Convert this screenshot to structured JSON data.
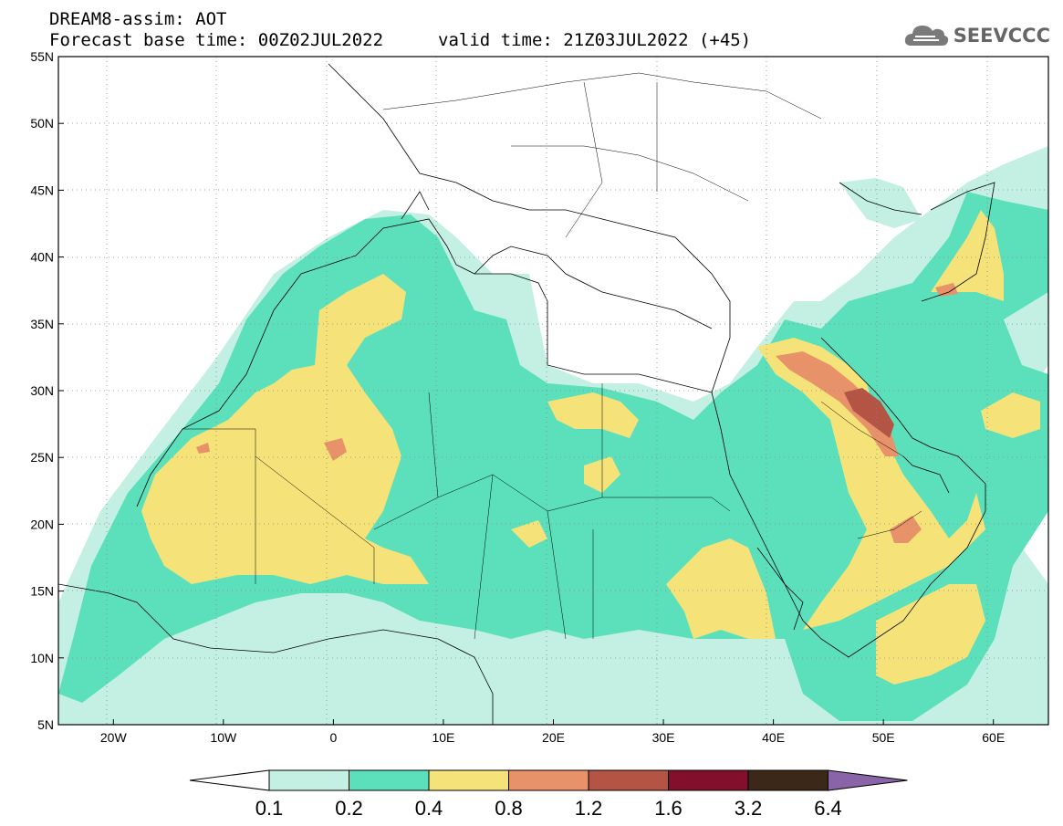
{
  "header": {
    "line1": "DREAM8-assim: AOT",
    "line2": "Forecast base time: 00Z02JUL2022",
    "valid": "valid time: 21Z03JUL2022 (+45)"
  },
  "logo": {
    "text": "SEEVCCC",
    "icon": "cloud-icon"
  },
  "map": {
    "lon_range": [
      -25,
      65
    ],
    "lat_range": [
      5,
      55
    ],
    "lat_ticks": [
      "55N",
      "50N",
      "45N",
      "40N",
      "35N",
      "30N",
      "25N",
      "20N",
      "15N",
      "10N",
      "5N"
    ],
    "lon_ticks": [
      "20W",
      "10W",
      "0",
      "10E",
      "20E",
      "30E",
      "40E",
      "50E",
      "60E"
    ],
    "grid": "dotted"
  },
  "colorbar": {
    "labels": [
      "0.1",
      "0.2",
      "0.4",
      "0.8",
      "1.2",
      "1.6",
      "3.2",
      "6.4"
    ],
    "colors": [
      "#ffffff",
      "#c4f0e4",
      "#5ce0bc",
      "#f5e37a",
      "#e8926a",
      "#b45444",
      "#82102c",
      "#3c2818",
      "#8a64a8"
    ]
  }
}
